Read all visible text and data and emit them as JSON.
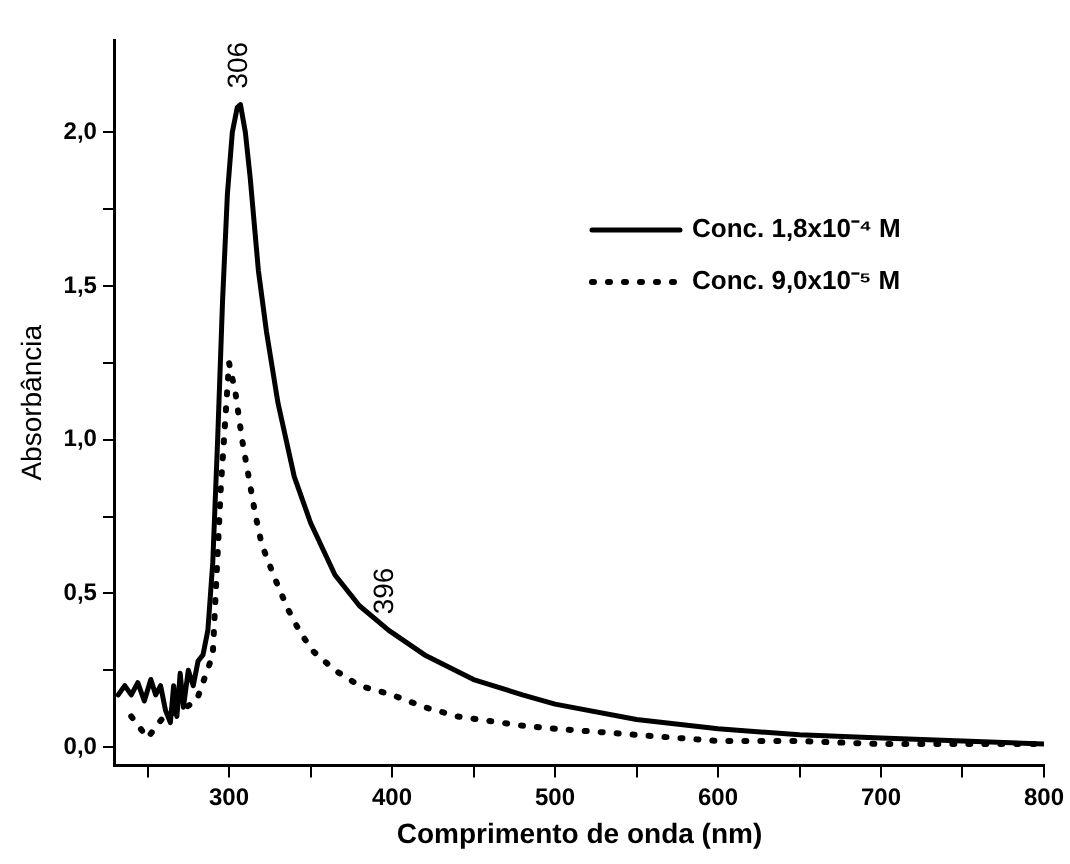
{
  "chart_data": {
    "type": "line",
    "xlabel": "Comprimento de onda (nm)",
    "ylabel": "Absorbância",
    "xlim": [
      230,
      800
    ],
    "ylim": [
      -0.06,
      2.3
    ],
    "xticks": [
      {
        "value": 250,
        "label": null
      },
      300,
      {
        "value": 350,
        "label": null
      },
      400,
      {
        "value": 450,
        "label": null
      },
      500,
      {
        "value": 550,
        "label": null
      },
      600,
      {
        "value": 650,
        "label": null
      },
      700,
      {
        "value": 750,
        "label": null
      },
      800
    ],
    "yticks": [
      {
        "value": 0,
        "label": "0,0"
      },
      {
        "value": 0.25,
        "label": null
      },
      {
        "value": 0.5,
        "label": "0,5"
      },
      {
        "value": 0.75,
        "label": null
      },
      {
        "value": 1,
        "label": "1,0"
      },
      {
        "value": 1.25,
        "label": null
      },
      {
        "value": 1.5,
        "label": "1,5"
      },
      {
        "value": 1.75,
        "label": null
      },
      {
        "value": 2,
        "label": "2,0"
      }
    ],
    "legend": "top right",
    "grid": false,
    "marker": "none",
    "annotations": [
      {
        "text": "306",
        "x": 306,
        "y": 2.09
      },
      {
        "text": "396",
        "x": 396,
        "y": 0.38
      }
    ],
    "series": [
      {
        "name": "Conc. 1,8x10⁻⁴ M",
        "color": "#000000",
        "line_style": "solid",
        "x": [
          232,
          236,
          240,
          244,
          248,
          252,
          255,
          258,
          261,
          264,
          266,
          268,
          270,
          272,
          275,
          278,
          281,
          284,
          287,
          290,
          293,
          296,
          299,
          302,
          305,
          307,
          310,
          313,
          318,
          323,
          330,
          340,
          350,
          365,
          380,
          398,
          420,
          450,
          480,
          500,
          550,
          600,
          650,
          700,
          750,
          800
        ],
        "values": [
          0.17,
          0.2,
          0.17,
          0.21,
          0.15,
          0.22,
          0.17,
          0.2,
          0.12,
          0.08,
          0.2,
          0.1,
          0.24,
          0.13,
          0.25,
          0.2,
          0.28,
          0.3,
          0.38,
          0.6,
          1.0,
          1.45,
          1.8,
          2.0,
          2.08,
          2.09,
          2.0,
          1.85,
          1.55,
          1.35,
          1.12,
          0.88,
          0.73,
          0.56,
          0.46,
          0.38,
          0.3,
          0.22,
          0.17,
          0.14,
          0.09,
          0.06,
          0.04,
          0.03,
          0.02,
          0.01
        ]
      },
      {
        "name": "Conc. 9,0x10⁻⁵ M",
        "color": "#000000",
        "line_style": "dotted",
        "x": [
          240,
          250,
          260,
          270,
          280,
          290,
          295,
          300,
          304,
          308,
          312,
          316,
          320,
          328,
          336,
          344,
          352,
          365,
          380,
          400,
          420,
          440,
          460,
          480,
          500,
          550,
          600,
          650,
          700,
          750,
          800
        ],
        "values": [
          0.1,
          0.03,
          0.1,
          0.12,
          0.15,
          0.3,
          0.85,
          1.25,
          1.15,
          1.0,
          0.88,
          0.76,
          0.66,
          0.55,
          0.45,
          0.37,
          0.31,
          0.25,
          0.2,
          0.17,
          0.13,
          0.1,
          0.085,
          0.07,
          0.06,
          0.04,
          0.02,
          0.02,
          0.01,
          0.01,
          0.01
        ]
      }
    ]
  }
}
